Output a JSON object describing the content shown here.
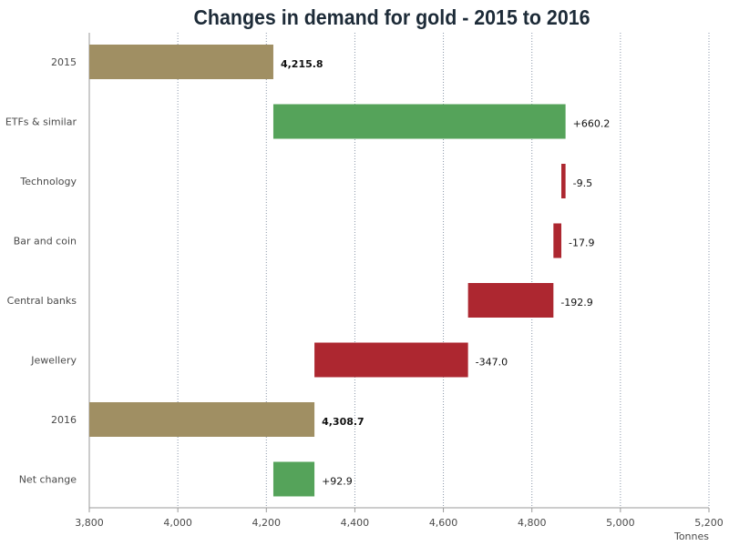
{
  "chart_data": {
    "type": "bar",
    "subtype": "waterfall",
    "orientation": "horizontal",
    "title": "Changes in demand for gold - 2015 to 2016",
    "xlabel": "Tonnes",
    "ylabel": "",
    "xlim": [
      3800,
      5200
    ],
    "x_ticks": [
      3800,
      4000,
      4200,
      4400,
      4600,
      4800,
      5000,
      5200
    ],
    "x_tick_labels": [
      "3,800",
      "4,000",
      "4,200",
      "4,400",
      "4,600",
      "4,800",
      "5,000",
      "5,200"
    ],
    "grid": "vertical dotted",
    "legend": "none",
    "categories": [
      "2015",
      "ETFs & similar",
      "Technology",
      "Bar and coin",
      "Central banks",
      "Jewellery",
      "2016",
      "Net change"
    ],
    "bars": [
      {
        "category": "2015",
        "kind": "total",
        "start": 3800,
        "end": 4215.8,
        "label": "4,215.8"
      },
      {
        "category": "ETFs & similar",
        "kind": "increase",
        "start": 4215.8,
        "end": 4876.0,
        "label": "+660.2"
      },
      {
        "category": "Technology",
        "kind": "decrease",
        "start": 4876.0,
        "end": 4866.5,
        "label": "-9.5"
      },
      {
        "category": "Bar and coin",
        "kind": "decrease",
        "start": 4866.5,
        "end": 4848.6,
        "label": "-17.9"
      },
      {
        "category": "Central banks",
        "kind": "decrease",
        "start": 4848.6,
        "end": 4655.7,
        "label": "-192.9"
      },
      {
        "category": "Jewellery",
        "kind": "decrease",
        "start": 4655.7,
        "end": 4308.7,
        "label": "-347.0"
      },
      {
        "category": "2016",
        "kind": "total",
        "start": 3800,
        "end": 4308.7,
        "label": "4,308.7"
      },
      {
        "category": "Net change",
        "kind": "increase",
        "start": 4215.8,
        "end": 4308.7,
        "label": "+92.9"
      }
    ],
    "colors": {
      "total": "#a08f63",
      "increase": "#55a35a",
      "decrease": "#ad2730",
      "axis": "#9a9a9a",
      "grid": "#8a96a8"
    }
  }
}
